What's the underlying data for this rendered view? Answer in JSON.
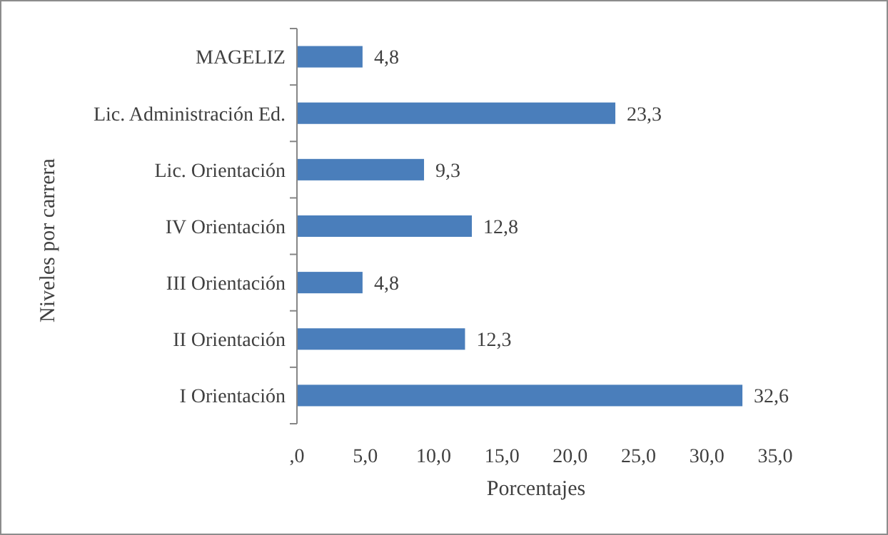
{
  "chart_data": {
    "type": "bar",
    "orientation": "horizontal",
    "xlabel": "Porcentajes",
    "ylabel": "Niveles por carrera",
    "categories": [
      "MAGELIZ",
      "Lic. Administración Ed.",
      "Lic. Orientación",
      "IV Orientación",
      "III Orientación",
      "II Orientación",
      "I Orientación"
    ],
    "values": [
      4.8,
      23.3,
      9.3,
      12.8,
      4.8,
      12.3,
      32.6
    ],
    "value_labels": [
      "4,8",
      "23,3",
      "9,3",
      "12,8",
      "4,8",
      "12,3",
      "32,6"
    ],
    "color": "#4a7ebb",
    "xlim": [
      0,
      35
    ],
    "xticks": [
      {
        "value": 0,
        "label": ",0"
      },
      {
        "value": 5,
        "label": "5,0"
      },
      {
        "value": 10,
        "label": "10,0"
      },
      {
        "value": 15,
        "label": "15,0"
      },
      {
        "value": 20,
        "label": "20,0"
      },
      {
        "value": 25,
        "label": "25,0"
      },
      {
        "value": 30,
        "label": "30,0"
      },
      {
        "value": 35,
        "label": "35,0"
      }
    ],
    "data_labels": false
  }
}
